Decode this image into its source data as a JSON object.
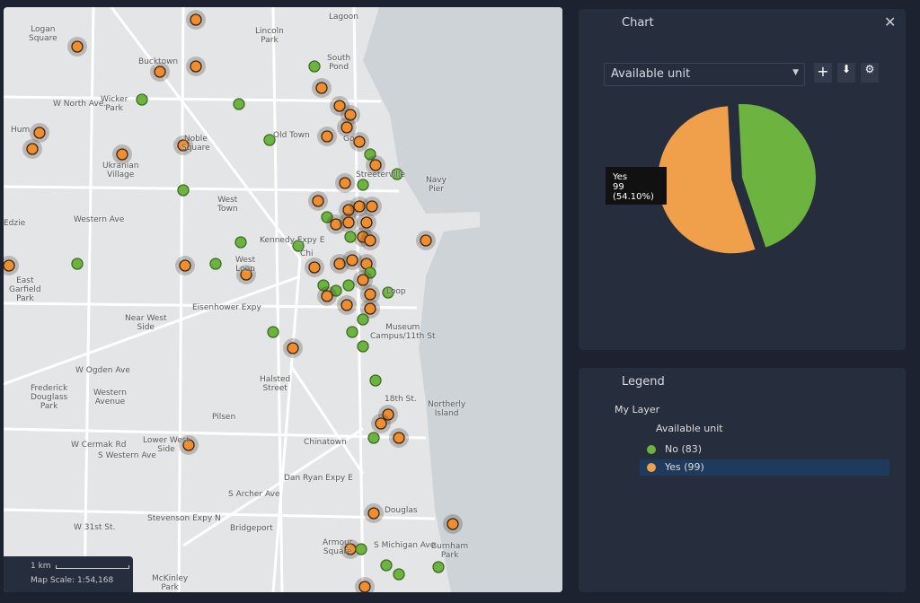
{
  "map": {
    "labels": [
      "Logan\nSquare",
      "Bucktown",
      "Wicker\nPark",
      "W North Ave.",
      "Hum",
      "Noble\nSquare",
      "Ukranian\nVillage",
      "Old Town",
      "Go",
      "Streeterville",
      "Navy\nPier",
      "West\nTown",
      "Western Ave",
      "Kennedy Expy E",
      "Chi",
      "West\nLoop",
      "East\nGarfield\nPark",
      "Near West\nSide",
      "Eisenhower Expy",
      "Museum\nCampus/11th St",
      "Halsted\nStreet",
      "W Ogden Ave",
      "Frederick\nDouglass\nPark",
      "Western\nAvenue",
      "Pilsen",
      "W Cermak Rd",
      "Lower West\nSide",
      "Chinatown",
      "18th St.",
      "Northerly\nIsland",
      "Dan Ryan Expy E",
      "S Archer Ave",
      "Stevenson Expy N",
      "Bridgeport",
      "W 31st St.",
      "Douglas",
      "Armour\nSquare",
      "Burnham\nPark",
      "McKinley\nPark",
      "Lincoln\nPark",
      "South\nPond",
      "Lagoon",
      "Loop",
      "S Western Ave",
      "S Michigan Ave",
      "Edzie"
    ],
    "scale": {
      "distance": "1 km",
      "text": "Map Scale: 1:54,168"
    }
  },
  "chart_panel": {
    "title": "Chart",
    "dropdown": "Available unit",
    "chart_data": {
      "type": "pie",
      "values": [
        83,
        99
      ],
      "colors": [
        "#6db33f",
        "#f0a04b"
      ]
    },
    "tooltip": {
      "label": "Yes",
      "text": "99 (54.10%)"
    }
  },
  "legend": {
    "title": "Legend",
    "layer": "My Layer",
    "field": "Available unit",
    "items": [
      "No (83)",
      "Yes (99)"
    ],
    "colors": [
      "#6db33f",
      "#f0a04b"
    ]
  }
}
